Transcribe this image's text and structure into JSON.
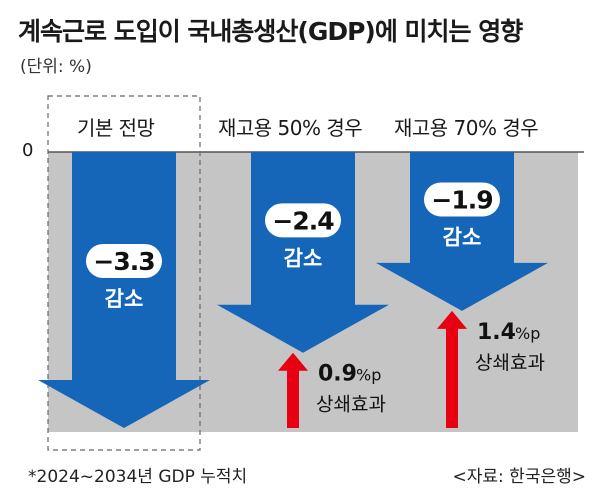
{
  "title": "계속근로 도입이 국내총생산(GDP)에 미치는 영향",
  "unit": "(단위: %)",
  "zero_label": "0",
  "footnote": "*2024~2034년 GDP 누적치",
  "source": "<자료: 한국은행>",
  "colors": {
    "plot_bg": "#c5c5c5",
    "arrow_blue": "#1565b8",
    "arrow_red": "#e60012",
    "label_white": "#ffffff"
  },
  "chart_data": {
    "type": "bar",
    "categories": [
      "기본 전망",
      "재고용 50% 경우",
      "재고용 70% 경우"
    ],
    "values": [
      -3.3,
      -2.4,
      -1.9
    ],
    "value_labels": [
      "−3.3",
      "−2.4",
      "−1.9"
    ],
    "decrease_label": "감소",
    "offsets": [
      {
        "category": "재고용 50% 경우",
        "value": 0.9,
        "value_text": "0.9",
        "unit_text": "%p",
        "label": "상쇄효과"
      },
      {
        "category": "재고용 70% 경우",
        "value": 1.4,
        "value_text": "1.4",
        "unit_text": "%p",
        "label": "상쇄효과"
      }
    ],
    "ylim": [
      -3.3,
      0
    ],
    "highlighted_category": "기본 전망",
    "xlabel": "",
    "ylabel": ""
  }
}
